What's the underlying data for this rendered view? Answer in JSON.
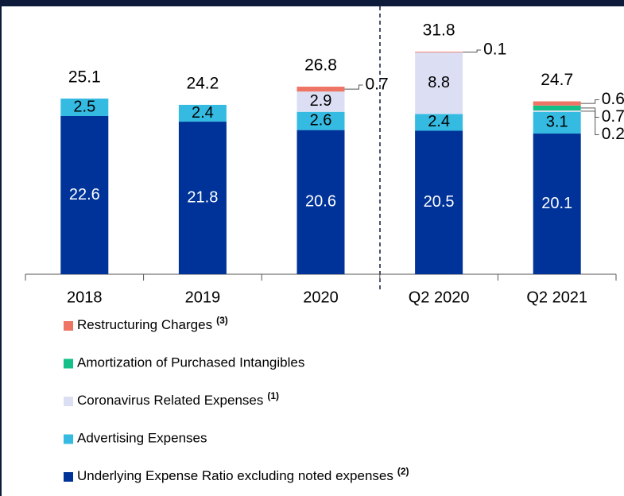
{
  "chart_data": {
    "type": "stacked_bar",
    "categories": [
      "2018",
      "2019",
      "2020",
      "Q2 2020",
      "Q2 2021"
    ],
    "totals": [
      25.1,
      24.2,
      26.8,
      31.8,
      24.7
    ],
    "series": [
      {
        "name": "Underlying Expense Ratio excluding noted expenses",
        "note": "(2)",
        "color": "#003399",
        "values": [
          22.6,
          21.8,
          20.6,
          20.5,
          20.1
        ]
      },
      {
        "name": "Advertising Expenses",
        "color": "#35bbe2",
        "values": [
          2.5,
          2.4,
          2.6,
          2.4,
          3.1
        ]
      },
      {
        "name": "Coronavirus Related Expenses",
        "note": "(1)",
        "color": "#dcdff4",
        "values": [
          null,
          null,
          2.9,
          8.8,
          0.2
        ]
      },
      {
        "name": "Amortization of Purchased Intangibles",
        "color": "#14bf8a",
        "values": [
          null,
          null,
          null,
          null,
          0.7
        ]
      },
      {
        "name": "Restructuring Charges",
        "note": "(3)",
        "color": "#ee7565",
        "values": [
          null,
          null,
          0.7,
          0.1,
          0.6
        ]
      }
    ]
  }
}
